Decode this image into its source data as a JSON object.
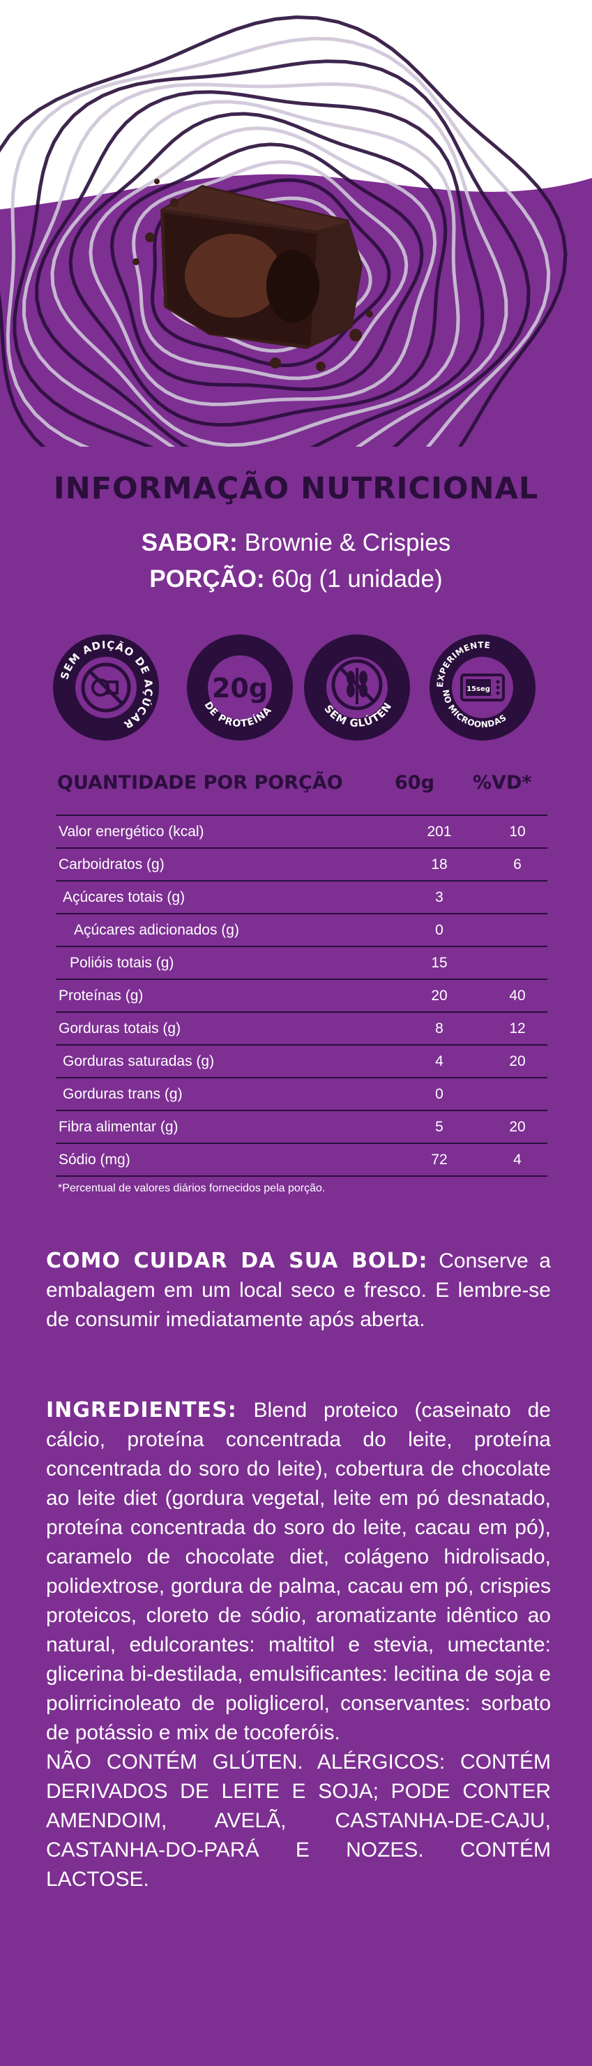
{
  "colors": {
    "background": "#7d2f92",
    "dark": "#2a0e3b",
    "text": "#ffffff"
  },
  "title": "INFORMAÇÃO NUTRICIONAL",
  "flavor": {
    "label": "SABOR:",
    "value": "Brownie & Crispies"
  },
  "portion": {
    "label": "PORÇÃO:",
    "value": "60g (1 unidade)"
  },
  "badges": [
    {
      "icon": "sugar-free-icon",
      "text": "SEM ADIÇÃO DE AÇÚCAR"
    },
    {
      "icon": "protein-20g-icon",
      "number": "20g",
      "text": "DE PROTEÍNA"
    },
    {
      "icon": "gluten-free-icon",
      "text": "SEM GLÚTEN"
    },
    {
      "icon": "microwave-icon",
      "number": "15seg",
      "text": "EXPERIMENTE NO MICROONDAS"
    }
  ],
  "table": {
    "headers": [
      "QUANTIDADE POR PORÇÃO",
      "60g",
      "%VD*"
    ],
    "rows": [
      {
        "name": "Valor energético (kcal)",
        "value": "201",
        "vd": "10"
      },
      {
        "name": "Carboidratos (g)",
        "value": "18",
        "vd": "6"
      },
      {
        "name": "Açúcares totais (g)",
        "value": "3",
        "vd": ""
      },
      {
        "name": "Açúcares adicionados (g)",
        "value": "0",
        "vd": ""
      },
      {
        "name": "Polióis totais (g)",
        "value": "15",
        "vd": ""
      },
      {
        "name": "Proteínas (g)",
        "value": "20",
        "vd": "40"
      },
      {
        "name": "Gorduras totais (g)",
        "value": "8",
        "vd": "12"
      },
      {
        "name": "Gorduras saturadas (g)",
        "value": "4",
        "vd": "20"
      },
      {
        "name": "Gorduras trans (g)",
        "value": "0",
        "vd": ""
      },
      {
        "name": "Fibra alimentar (g)",
        "value": "5",
        "vd": "20"
      },
      {
        "name": "Sódio (mg)",
        "value": "72",
        "vd": "4"
      }
    ],
    "footnote": "*Percentual de valores diários fornecidos pela porção."
  },
  "care": {
    "label": "COMO CUIDAR DA SUA BOLD:",
    "text": "Conserve a embalagem em um local seco e fresco. E lembre-se de consumir imediatamente após aberta."
  },
  "ingredients": {
    "label": "INGREDIENTES:",
    "text": "Blend proteico (caseinato de cálcio, proteína concentrada do leite, proteína concentrada do soro do leite), cobertura de chocolate ao leite diet (gordura vegetal, leite em pó desnatado, proteína concentrada do soro do leite, cacau em pó), caramelo de chocolate diet, colágeno hidrolisado, polidextrose, gordura de palma, cacau em pó, crispies proteicos, cloreto de sódio, aromatizante idêntico ao natural, edulcorantes: maltitol e stevia, umectante: glicerina bi-destilada, emulsificantes: lecitina de soja e polirricinoleato de poliglicerol, conservantes: sorbato de potássio e mix de tocoferóis.",
    "allergens": "NÃO CONTÉM GLÚTEN. ALÉRGICOS: CONTÉM DERIVADOS DE LEITE E SOJA; PODE CONTER AMENDOIM, AVELÃ, CASTANHA-DE-CAJU, CASTANHA-DO-PARÁ E NOZES. CONTÉM LACTOSE."
  }
}
